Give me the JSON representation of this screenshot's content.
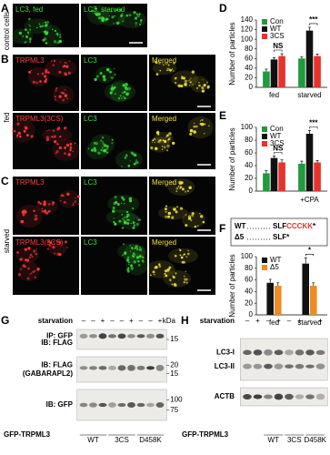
{
  "micrographs": [
    {
      "letter": "A",
      "side_label": "control cells",
      "rows": [
        [
          "LC3, fed",
          "LC3, starved"
        ]
      ]
    },
    {
      "letter": "B",
      "side_label": "fed",
      "rows": [
        [
          "TRPML3",
          "LC3",
          "Merged"
        ],
        [
          "TRPML3(3CS)",
          "LC3",
          "Merged"
        ]
      ]
    },
    {
      "letter": "C",
      "side_label": "starved",
      "rows": [
        [
          "TRPML3",
          "LC3",
          "Merged"
        ],
        [
          "TRPML3(3CS)",
          "LC3",
          "Merged"
        ]
      ]
    }
  ],
  "chart_data": [
    {
      "type": "bar",
      "panel_label": "D",
      "y_label": "Number of particles",
      "categories": [
        "fed",
        "starved"
      ],
      "series": [
        {
          "name": "Con",
          "color": "#1f9a3c",
          "values": [
            33,
            60
          ],
          "errors": [
            5,
            4
          ]
        },
        {
          "name": "WT",
          "color": "#111111",
          "values": [
            58,
            118
          ],
          "errors": [
            4,
            7
          ]
        },
        {
          "name": "3CS",
          "color": "#e8322d",
          "values": [
            65,
            65
          ],
          "errors": [
            5,
            4
          ]
        }
      ],
      "ylim": [
        0,
        140
      ],
      "yticks": [
        0,
        20,
        40,
        60,
        80,
        100,
        120,
        140
      ],
      "annotations": [
        "NS",
        "***"
      ]
    },
    {
      "type": "bar",
      "panel_label": "E",
      "y_label": "Number of particles",
      "categories": [
        null,
        "+CPA"
      ],
      "series": [
        {
          "name": "Con",
          "color": "#1f9a3c",
          "values": [
            28,
            43
          ],
          "errors": [
            4,
            4
          ]
        },
        {
          "name": "WT",
          "color": "#111111",
          "values": [
            52,
            90
          ],
          "errors": [
            3,
            5
          ]
        },
        {
          "name": "3CS",
          "color": "#e8322d",
          "values": [
            45,
            45
          ],
          "errors": [
            4,
            3
          ]
        }
      ],
      "ylim": [
        0,
        100
      ],
      "yticks": [
        0,
        20,
        40,
        60,
        80,
        100
      ],
      "annotations": [
        "NS",
        "***"
      ]
    },
    {
      "type": "bar",
      "panel_label": "F",
      "y_label": "Number of particles",
      "categories": [
        "fed",
        "starved"
      ],
      "series": [
        {
          "name": "WT",
          "color": "#111111",
          "values": [
            55,
            88
          ],
          "errors": [
            6,
            10
          ]
        },
        {
          "name": "Δ5",
          "color": "#f08a24",
          "values": [
            50,
            50
          ],
          "errors": [
            5,
            5
          ]
        }
      ],
      "ylim": [
        0,
        100
      ],
      "yticks": [
        0,
        20,
        40,
        60,
        80,
        100
      ],
      "annotations": [
        "*"
      ],
      "sequence": [
        {
          "name": "WT",
          "prefix": "SLF",
          "highlight": "CCCKK",
          "suffix": "*"
        },
        {
          "name": "Δ5",
          "prefix": "SLF",
          "suffix": "*"
        }
      ]
    }
  ],
  "blots": [
    {
      "letter": "G",
      "treatment": "starvation",
      "signs": [
        "–",
        "–",
        "+",
        "–",
        "–",
        "+",
        "–",
        "–",
        "+"
      ],
      "unit": "kDa",
      "strips": [
        {
          "labels": [
            "IP: GFP",
            "IB: FLAG"
          ],
          "markers": [
            "15"
          ]
        },
        {
          "labels": [
            "IB: FLAG",
            "(GABARAPL2)"
          ],
          "markers": [
            "20",
            "15"
          ]
        },
        {
          "labels": [
            "IB: GFP"
          ],
          "markers": [
            "100",
            "75"
          ]
        }
      ],
      "construct": "GFP-TRPML3",
      "groups": [
        "WT",
        "3CS",
        "D458K"
      ]
    },
    {
      "letter": "H",
      "treatment": "starvation",
      "signs": [
        "–",
        "+",
        "–",
        "+",
        "–",
        "+",
        "–",
        "+"
      ],
      "strips": [
        {
          "labels": [
            "LC3-I",
            "LC3-II"
          ]
        },
        {
          "labels": [
            "ACTB"
          ]
        }
      ],
      "construct": "GFP-TRPML3",
      "groups": [
        "WT",
        "3CS",
        "D458K"
      ]
    }
  ]
}
